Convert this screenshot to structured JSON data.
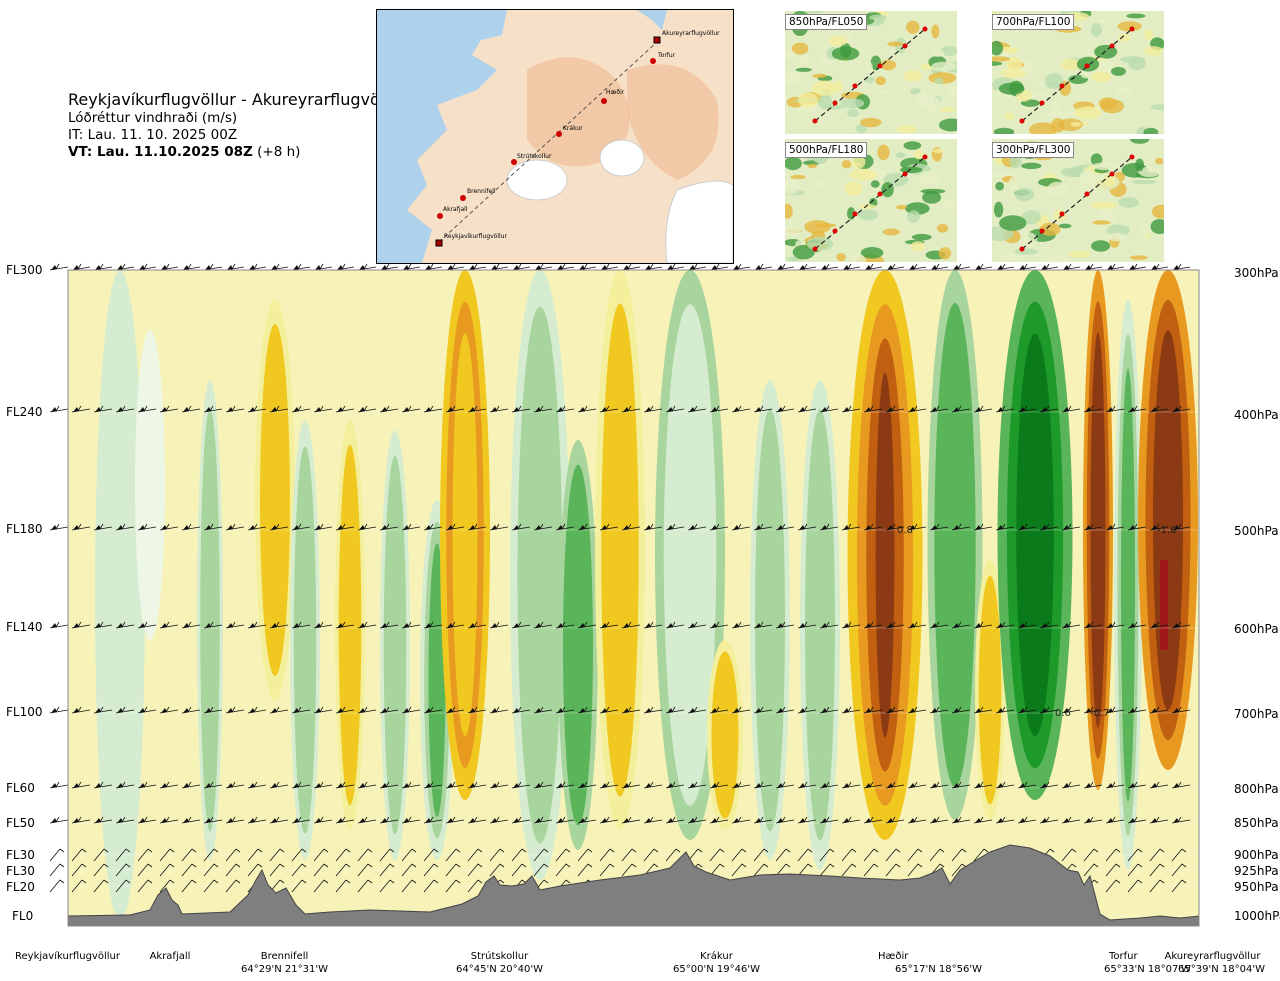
{
  "title": {
    "route": "Reykjavíkurflugvöllur - Akureyrarflugvöllur",
    "parameter": "Lóðréttur vindhraði (m/s)",
    "issue_time": "IT: Lau. 11. 10. 2025 00Z",
    "valid_time_bold": "VT: Lau. 11.10.2025 08Z",
    "valid_time_offset": "(+8 h)"
  },
  "route_map": {
    "points": [
      {
        "name": "Akureyrarflugvöllur",
        "marker": "square"
      },
      {
        "name": "Torfur",
        "marker": "circle"
      },
      {
        "name": "Hæðir",
        "marker": "circle"
      },
      {
        "name": "Krákur",
        "marker": "circle"
      },
      {
        "name": "Strútskollur",
        "marker": "circle"
      },
      {
        "name": "Brennifell",
        "marker": "circle"
      },
      {
        "name": "Akrafjall",
        "marker": "circle"
      },
      {
        "name": "Reykjavíkurflugvöllur",
        "marker": "square"
      }
    ]
  },
  "level_maps": [
    {
      "label": "850hPa/FL050"
    },
    {
      "label": "700hPa/FL100"
    },
    {
      "label": "500hPa/FL180"
    },
    {
      "label": "300hPa/FL300"
    }
  ],
  "flight_levels": [
    {
      "fl": "FL300",
      "hpa": "300hPa",
      "p": 300
    },
    {
      "fl": "FL240",
      "hpa": "400hPa",
      "p": 400
    },
    {
      "fl": "FL180",
      "hpa": "500hPa",
      "p": 500
    },
    {
      "fl": "FL140",
      "hpa": "600hPa",
      "p": 600
    },
    {
      "fl": "FL100",
      "hpa": "700hPa",
      "p": 700
    },
    {
      "fl": "FL60",
      "hpa": "800hPa",
      "p": 800
    },
    {
      "fl": "FL50",
      "hpa": "850hPa",
      "p": 850
    },
    {
      "fl": "FL30",
      "hpa": "900hPa",
      "p": 900
    },
    {
      "fl": "FL30",
      "hpa": "925hPa",
      "p": 925
    },
    {
      "fl": "FL20",
      "hpa": "950hPa",
      "p": 950
    },
    {
      "fl": "FL0",
      "hpa": "1000hPa",
      "p": 1000
    }
  ],
  "waypoints": [
    {
      "name": "Reykjavíkurflugvöllur",
      "coord": ""
    },
    {
      "name": "Akrafjall",
      "coord": ""
    },
    {
      "name": "Brennifell",
      "coord": "64°29'N 21°31'W"
    },
    {
      "name": "Strútskollur",
      "coord": "64°45'N 20°40'W"
    },
    {
      "name": "Krákur",
      "coord": "65°00'N 19°46'W"
    },
    {
      "name": "Hæðir",
      "coord": "65°17'N 18°56'W"
    },
    {
      "name": "Torfur",
      "coord": "65°33'N 18°07'W"
    },
    {
      "name": "Akureyrarflugvöllur",
      "coord": "65°39'N 18°04'W"
    }
  ],
  "contour_labels": [
    "0.8",
    "-1.0",
    "0.6",
    "-0.7"
  ],
  "colors": {
    "strong_down": "#8b3a14",
    "down_3": "#c06010",
    "down_2": "#e89a20",
    "down_1": "#f0c820",
    "weak_down": "#f3ef9a",
    "calm": "#f7f3b8",
    "weak_up": "#d6ecd0",
    "up_1": "#a8d49e",
    "up_2": "#5ab45a",
    "up_3": "#1e9a2a",
    "strong_up": "#0a7a1a",
    "terrain": "#7f7f7f"
  }
}
